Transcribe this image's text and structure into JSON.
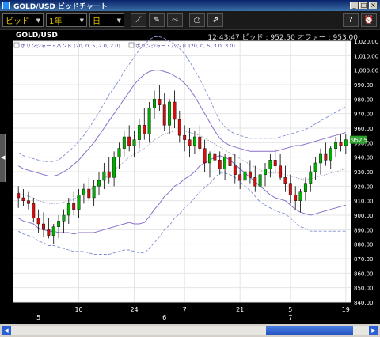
{
  "window": {
    "title": "GOLD/USD ビッドチャート",
    "buttons": [
      "_",
      "□",
      "×"
    ]
  },
  "toolbar": {
    "price_type": "ビッド",
    "period": "1年",
    "interval": "日",
    "tools": [
      "trend-line-icon",
      "pin-icon",
      "indicator-icon",
      "printer-icon",
      "chart-export-icon"
    ],
    "right_tools": [
      "help-icon",
      "alarm-icon"
    ]
  },
  "header": {
    "symbol": "GOLD/USD",
    "quote": "12:43:47  ビッド : 952.50  オファー : 953.00"
  },
  "legend": [
    {
      "label": "ボリンジャー・バンド (20, 0, 5, 2.0, 2.0)"
    },
    {
      "label": "ボリンジャー・バンド (20, 0, 5, 3.0, 3.0)"
    }
  ],
  "colors": {
    "up": "#00b000",
    "down": "#d01010",
    "band2": "#8a6fc8",
    "band3": "#7f8fd0",
    "mid": "#9aa0c0",
    "grid": "#e4e4e4",
    "current_tag": "#2e9e2e"
  },
  "chart_data": {
    "type": "candlestick",
    "ylim": [
      840,
      1020
    ],
    "yticks": [
      "1,020.00",
      "1,010.00",
      "1,000.00",
      "990.00",
      "980.00",
      "970.00",
      "960.00",
      "950.00",
      "940.00",
      "930.00",
      "920.00",
      "910.00",
      "900.00",
      "890.00",
      "880.00",
      "870.00",
      "860.00",
      "850.00",
      "840.00"
    ],
    "x_day_labels": [
      {
        "label": "10",
        "index": 12
      },
      {
        "label": "24",
        "index": 23
      },
      {
        "label": "7",
        "index": 33
      },
      {
        "label": "21",
        "index": 44
      },
      {
        "label": "5",
        "index": 54
      },
      {
        "label": "19",
        "index": 65
      }
    ],
    "x_month_labels": [
      {
        "label": "5",
        "index": 4
      },
      {
        "label": "6",
        "index": 29
      },
      {
        "label": "7",
        "index": 54
      }
    ],
    "current_price_label": "952.5",
    "ohlc": [
      [
        915,
        920,
        905,
        912
      ],
      [
        912,
        918,
        906,
        910
      ],
      [
        910,
        916,
        904,
        908
      ],
      [
        908,
        912,
        895,
        898
      ],
      [
        898,
        904,
        888,
        894
      ],
      [
        894,
        902,
        885,
        890
      ],
      [
        890,
        898,
        884,
        886
      ],
      [
        886,
        894,
        880,
        892
      ],
      [
        892,
        900,
        884,
        896
      ],
      [
        896,
        904,
        888,
        900
      ],
      [
        900,
        912,
        894,
        908
      ],
      [
        908,
        916,
        900,
        904
      ],
      [
        904,
        918,
        898,
        914
      ],
      [
        914,
        922,
        908,
        918
      ],
      [
        918,
        926,
        910,
        912
      ],
      [
        912,
        924,
        906,
        920
      ],
      [
        920,
        930,
        914,
        924
      ],
      [
        924,
        936,
        918,
        930
      ],
      [
        930,
        940,
        922,
        926
      ],
      [
        926,
        944,
        920,
        940
      ],
      [
        940,
        950,
        932,
        946
      ],
      [
        946,
        958,
        940,
        954
      ],
      [
        954,
        962,
        944,
        948
      ],
      [
        948,
        958,
        940,
        952
      ],
      [
        952,
        966,
        946,
        962
      ],
      [
        962,
        974,
        952,
        956
      ],
      [
        956,
        978,
        950,
        974
      ],
      [
        974,
        986,
        966,
        980
      ],
      [
        980,
        990,
        972,
        976
      ],
      [
        976,
        984,
        958,
        962
      ],
      [
        962,
        980,
        956,
        978
      ],
      [
        978,
        986,
        960,
        966
      ],
      [
        966,
        972,
        950,
        955
      ],
      [
        955,
        962,
        944,
        952
      ],
      [
        952,
        960,
        940,
        948
      ],
      [
        948,
        958,
        942,
        954
      ],
      [
        954,
        962,
        944,
        946
      ],
      [
        946,
        952,
        930,
        936
      ],
      [
        936,
        944,
        926,
        942
      ],
      [
        942,
        950,
        932,
        938
      ],
      [
        938,
        944,
        928,
        932
      ],
      [
        932,
        942,
        924,
        940
      ],
      [
        940,
        948,
        930,
        934
      ],
      [
        934,
        942,
        922,
        928
      ],
      [
        928,
        936,
        918,
        924
      ],
      [
        924,
        934,
        914,
        930
      ],
      [
        930,
        938,
        922,
        926
      ],
      [
        926,
        934,
        916,
        920
      ],
      [
        920,
        930,
        910,
        928
      ],
      [
        928,
        936,
        920,
        932
      ],
      [
        932,
        942,
        926,
        938
      ],
      [
        938,
        946,
        930,
        934
      ],
      [
        934,
        942,
        924,
        926
      ],
      [
        926,
        934,
        916,
        922
      ],
      [
        922,
        928,
        908,
        914
      ],
      [
        914,
        920,
        904,
        910
      ],
      [
        910,
        918,
        902,
        916
      ],
      [
        916,
        926,
        910,
        922
      ],
      [
        922,
        934,
        916,
        930
      ],
      [
        930,
        940,
        924,
        936
      ],
      [
        936,
        946,
        928,
        942
      ],
      [
        942,
        950,
        934,
        938
      ],
      [
        938,
        948,
        932,
        946
      ],
      [
        946,
        954,
        940,
        950
      ],
      [
        950,
        956,
        944,
        948
      ],
      [
        948,
        956,
        942,
        952
      ]
    ],
    "series": [
      {
        "values": [
          916,
          914,
          913,
          912,
          910,
          909,
          908,
          908,
          908,
          909,
          910,
          911,
          913,
          915,
          917,
          919,
          922,
          925,
          928,
          931,
          934,
          937,
          940,
          942,
          944,
          946,
          949,
          952,
          954,
          956,
          957,
          958,
          958,
          958,
          957,
          956,
          955,
          953,
          951,
          949,
          947,
          945,
          943,
          941,
          939,
          937,
          935,
          933,
          931,
          930,
          929,
          929,
          929,
          928,
          927,
          926,
          925,
          925,
          925,
          926,
          927,
          928,
          929,
          930,
          931,
          932
        ]
      },
      {
        "values": [
          934,
          932,
          931,
          930,
          929,
          928,
          927,
          927,
          928,
          930,
          932,
          935,
          938,
          942,
          946,
          950,
          955,
          960,
          965,
          970,
          975,
          980,
          985,
          990,
          994,
          997,
          999,
          1000,
          1000,
          999,
          998,
          996,
          994,
          991,
          987,
          982,
          976,
          970,
          964,
          958,
          953,
          950,
          948,
          947,
          946,
          945,
          944,
          944,
          944,
          944,
          944,
          944,
          945,
          946,
          947,
          948,
          948,
          949,
          950,
          951,
          952,
          953,
          954,
          955,
          956,
          957
        ]
      },
      {
        "values": [
          898,
          896,
          895,
          894,
          891,
          890,
          889,
          889,
          888,
          888,
          888,
          887,
          888,
          888,
          888,
          888,
          889,
          890,
          891,
          892,
          893,
          894,
          895,
          894,
          894,
          895,
          899,
          904,
          908,
          913,
          916,
          920,
          922,
          925,
          927,
          930,
          934,
          936,
          938,
          940,
          941,
          940,
          938,
          935,
          932,
          929,
          926,
          923,
          920,
          917,
          914,
          912,
          911,
          910,
          907,
          904,
          902,
          901,
          900,
          901,
          902,
          903,
          904,
          905,
          906,
          907
        ]
      },
      {
        "values": [
          943,
          941,
          940,
          939,
          938,
          937,
          937,
          937,
          938,
          941,
          944,
          947,
          951,
          955,
          960,
          965,
          971,
          977,
          983,
          988,
          993,
          999,
          1004,
          1009,
          1014,
          1018,
          1021,
          1023,
          1023,
          1022,
          1020,
          1018,
          1015,
          1011,
          1006,
          1000,
          994,
          987,
          980,
          972,
          965,
          961,
          958,
          956,
          955,
          954,
          953,
          953,
          953,
          953,
          953,
          953,
          954,
          955,
          956,
          957,
          958,
          959,
          961,
          963,
          965,
          967,
          969,
          971,
          973,
          975
        ]
      },
      {
        "values": [
          889,
          887,
          886,
          885,
          882,
          881,
          879,
          879,
          878,
          877,
          876,
          875,
          875,
          875,
          874,
          873,
          873,
          873,
          873,
          874,
          875,
          876,
          876,
          875,
          874,
          874,
          877,
          881,
          885,
          890,
          893,
          898,
          901,
          905,
          908,
          912,
          916,
          919,
          922,
          926,
          929,
          929,
          928,
          926,
          923,
          920,
          917,
          913,
          909,
          907,
          905,
          903,
          902,
          901,
          898,
          895,
          892,
          891,
          889,
          889,
          889,
          889,
          889,
          889,
          889,
          889
        ]
      }
    ]
  }
}
